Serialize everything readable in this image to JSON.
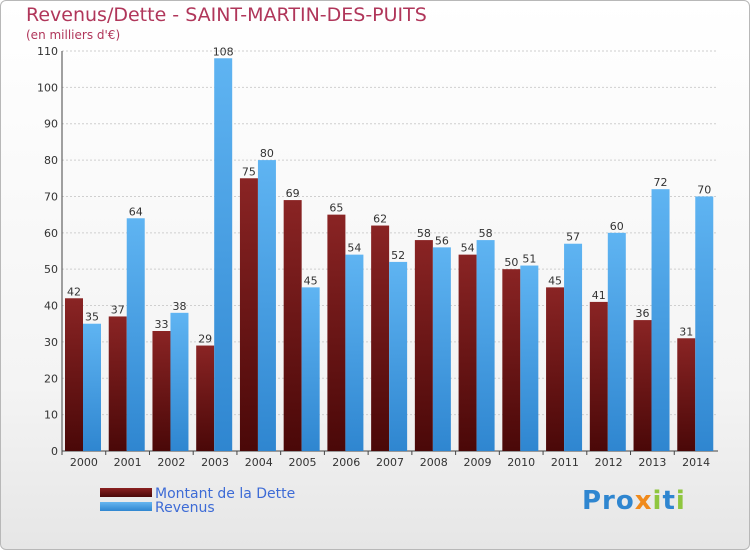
{
  "chart_data": {
    "type": "bar",
    "title": "Revenus/Dette - SAINT-MARTIN-DES-PUITS",
    "subtitle": "(en milliers d'€)",
    "categories": [
      "2000",
      "2001",
      "2002",
      "2003",
      "2004",
      "2005",
      "2006",
      "2007",
      "2008",
      "2009",
      "2010",
      "2011",
      "2012",
      "2013",
      "2014"
    ],
    "series": [
      {
        "name": "Montant de la Dette",
        "values": [
          42,
          37,
          33,
          29,
          75,
          69,
          65,
          62,
          58,
          54,
          50,
          45,
          41,
          36,
          31
        ],
        "color": "#6b1414"
      },
      {
        "name": "Revenus",
        "values": [
          35,
          64,
          38,
          108,
          80,
          45,
          54,
          52,
          56,
          58,
          51,
          57,
          60,
          72,
          70
        ],
        "color": "#4aa3e6"
      }
    ],
    "ylim": [
      0,
      110
    ],
    "yticks": [
      0,
      10,
      20,
      30,
      40,
      50,
      60,
      70,
      80,
      90,
      100,
      110
    ],
    "grid": true,
    "legend_position": "bottom-left"
  },
  "brand": {
    "logo_text": "Proxiti",
    "colors": [
      "#2f86d0",
      "#8fc63f",
      "#f08a1c"
    ]
  }
}
